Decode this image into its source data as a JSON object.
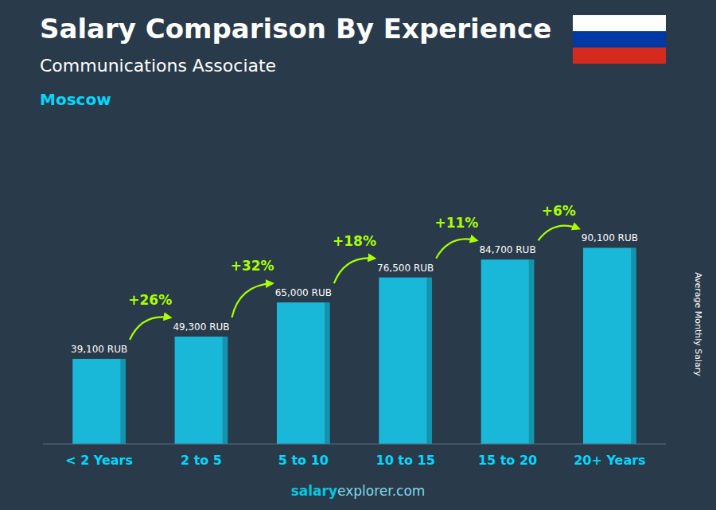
{
  "chart_data": {
    "type": "bar",
    "title": "Salary Comparison By Experience",
    "subtitle": "Communications Associate",
    "annotations": [
      "Moscow"
    ],
    "source": [
      "salary",
      "explorer.com"
    ],
    "ylabel": "Average Monthly Salary",
    "categories": [
      "< 2 Years",
      "2 to 5",
      "5 to 10",
      "10 to 15",
      "15 to 20",
      "20+ Years"
    ],
    "values": [
      39100,
      49300,
      65000,
      76500,
      84700,
      90100
    ],
    "value_labels": [
      "39,100 RUB",
      "49,300 RUB",
      "65,000 RUB",
      "76,500 RUB",
      "84,700 RUB",
      "90,100 RUB"
    ],
    "changes": [
      {
        "from": 0,
        "to": 1,
        "value": 26,
        "label": "+26%"
      },
      {
        "from": 1,
        "to": 2,
        "value": 32,
        "label": "+32%"
      },
      {
        "from": 2,
        "to": 3,
        "value": 18,
        "label": "+18%"
      },
      {
        "from": 3,
        "to": 4,
        "value": 11,
        "label": "+11%"
      },
      {
        "from": 4,
        "to": 5,
        "value": 6,
        "label": "+6%"
      }
    ],
    "color": "#1ab8d8",
    "ylim": [
      0,
      110000
    ],
    "data_labels": true,
    "tick_labels": "x",
    "grid": false
  }
}
